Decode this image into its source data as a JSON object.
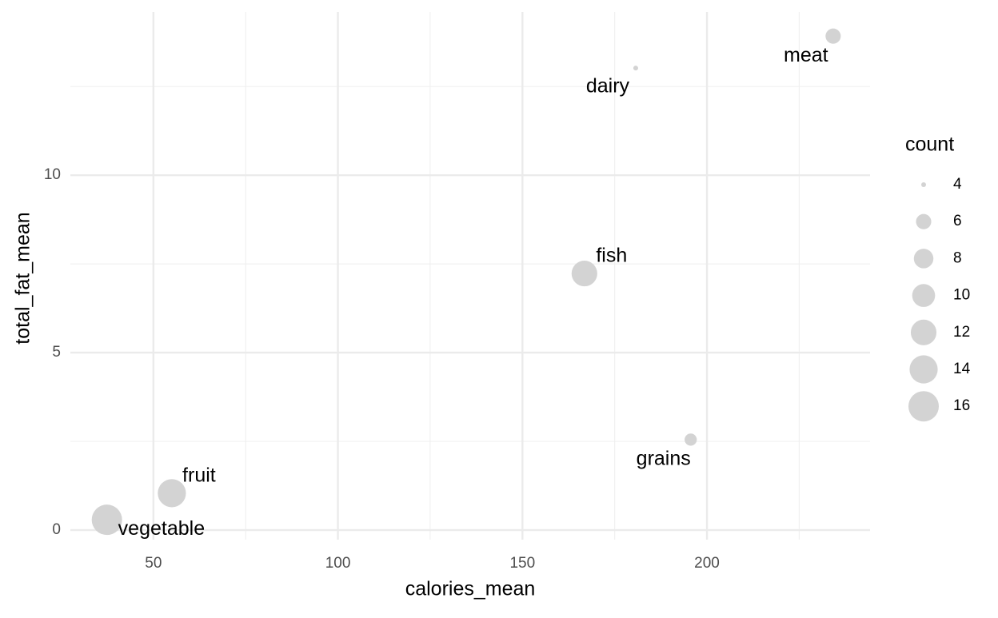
{
  "chart_data": {
    "type": "scatter",
    "x_label": "calories_mean",
    "y_label": "total_fat_mean",
    "categories": [
      "meat",
      "dairy",
      "fish",
      "grains",
      "fruit",
      "vegetable"
    ],
    "x": [
      234.2,
      180.7,
      166.8,
      195.6,
      55.0,
      37.4
    ],
    "values": [
      13.92,
      13.02,
      7.23,
      2.55,
      1.04,
      0.29
    ],
    "sizes": [
      6,
      4,
      12,
      5,
      14,
      16
    ],
    "color": "#d3d3d3",
    "xlim": [
      27.5,
      244.2
    ],
    "ylim": [
      -0.27,
      14.6
    ],
    "xticks": [
      50,
      100,
      150,
      200
    ],
    "yticks": [
      0,
      5,
      10
    ],
    "x_minor_grid": [
      75,
      125,
      175,
      225
    ],
    "y_minor_grid": [
      2.5,
      7.5,
      12.5
    ],
    "grid": true,
    "legend": {
      "title": "count",
      "values": [
        4,
        6,
        8,
        10,
        12,
        14,
        16
      ]
    }
  }
}
